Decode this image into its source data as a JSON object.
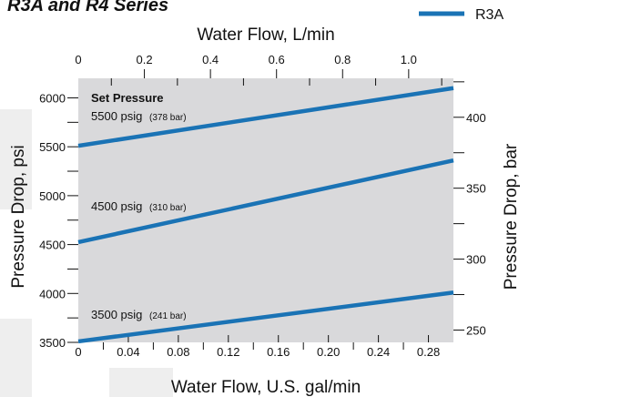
{
  "chart_data": {
    "type": "line",
    "title": "R3A and R4 Series",
    "xlabel": "Water Flow, U.S. gal/min",
    "xlabel_top": "Water Flow, L/min",
    "ylabel": "Pressure Drop, psi",
    "ylabel_right": "Pressure Drop, bar",
    "xlim": [
      0,
      0.3
    ],
    "ylim": [
      3500,
      6200
    ],
    "x_ticks": [
      0,
      0.04,
      0.08,
      0.12,
      0.16,
      0.2,
      0.24,
      0.28
    ],
    "x_tick_labels": [
      "0",
      "0.04",
      "0.08",
      "0.12",
      "0.16",
      "0.20",
      "0.24",
      "0.28"
    ],
    "x_minor_ticks": [
      0.02,
      0.06,
      0.1,
      0.14,
      0.18,
      0.22,
      0.26
    ],
    "y_ticks": [
      3500,
      4000,
      4500,
      5000,
      5500,
      6000
    ],
    "y_tick_labels": [
      "3500",
      "4000",
      "4500",
      "5000",
      "5500",
      "6000"
    ],
    "y_minor_ticks": [
      3750,
      4250,
      4750,
      5250,
      5750
    ],
    "top_ticks_lpm": [
      0,
      0.2,
      0.4,
      0.6,
      0.8,
      1.0
    ],
    "top_tick_labels": [
      "0",
      "0.2",
      "0.4",
      "0.6",
      "0.8",
      "1.0"
    ],
    "top_minor_ticks_lpm": [
      0.1,
      0.3,
      0.5,
      0.7,
      0.9,
      1.1
    ],
    "lpm_per_gpm": 3.785,
    "right_ticks_bar": [
      250,
      300,
      350,
      400
    ],
    "right_tick_labels": [
      "250",
      "300",
      "350",
      "400"
    ],
    "right_minor_ticks_bar": [
      275,
      325,
      375,
      425
    ],
    "psi_per_bar": 14.504,
    "grid": false,
    "legend_position": "top-right",
    "legend": [
      {
        "label": "R3A",
        "color": "#1a73b5"
      }
    ],
    "series": [
      {
        "name": "R3A",
        "label": "5500 psig",
        "label_small": "(378 bar)",
        "x": [
          0,
          0.3
        ],
        "y": [
          5510,
          6100
        ]
      },
      {
        "name": "R3A",
        "label": "4500 psig",
        "label_small": "(310 bar)",
        "x": [
          0,
          0.3
        ],
        "y": [
          4525,
          5360
        ]
      },
      {
        "name": "R3A",
        "label": "3500 psig",
        "label_small": "(241 bar)",
        "x": [
          0,
          0.3
        ],
        "y": [
          3510,
          4010
        ]
      }
    ],
    "annotations": {
      "set_pressure_heading": "Set Pressure"
    },
    "colors": {
      "line": "#1a73b5",
      "plot_background": "#d9d9db",
      "watermark": "#ececec"
    }
  }
}
